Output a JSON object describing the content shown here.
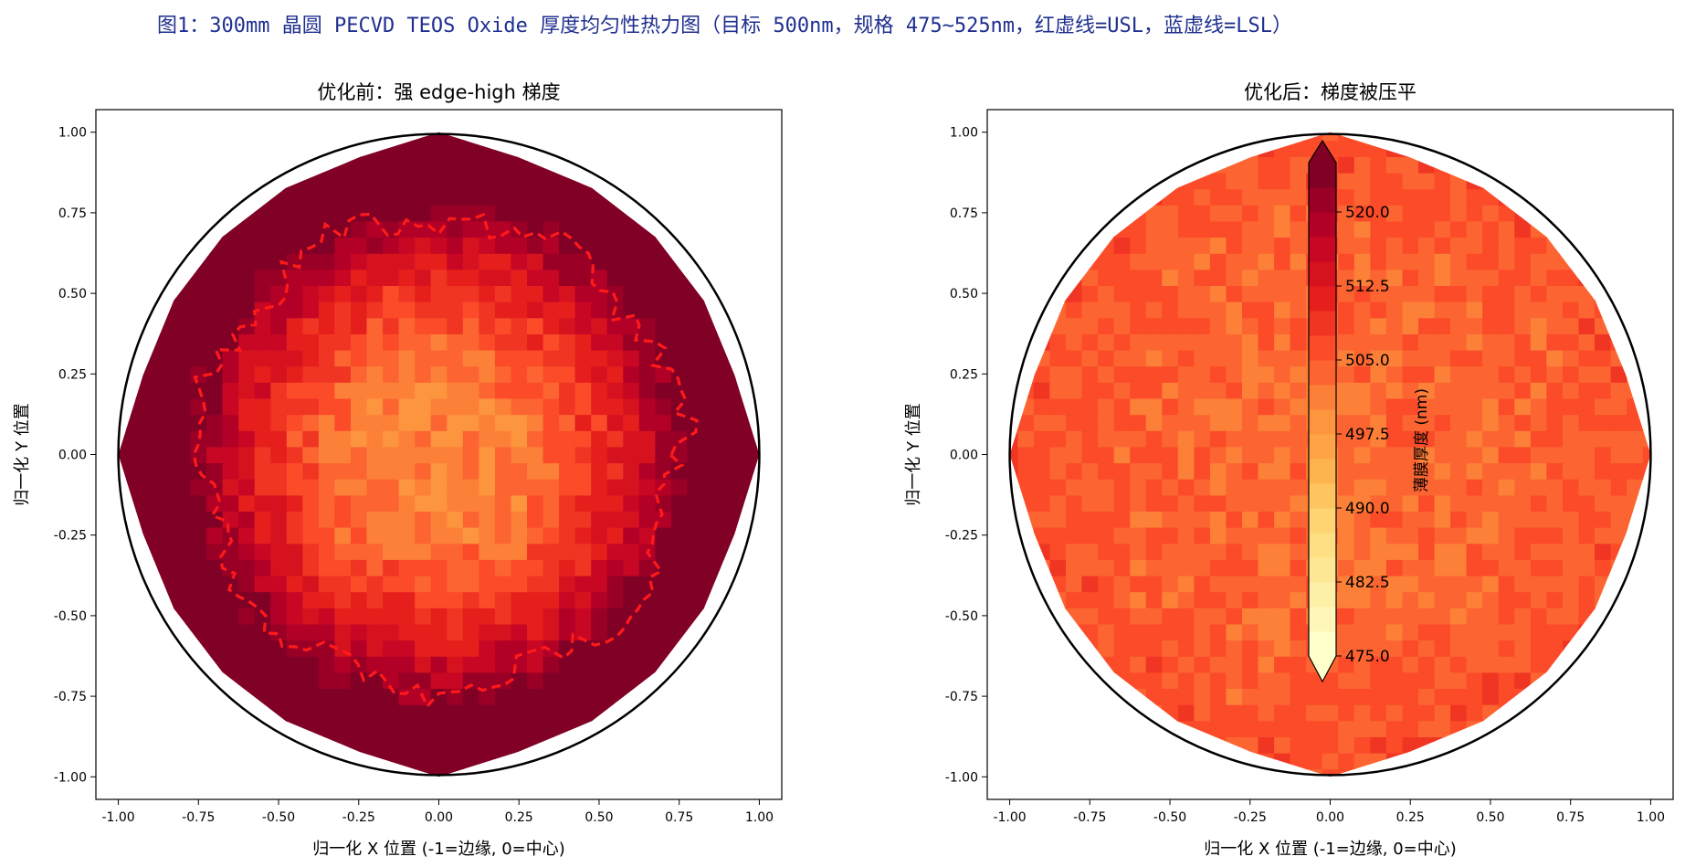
{
  "figure_title": "图1：300mm 晶圆 PECVD TEOS Oxide 厚度均匀性热力图（目标 500nm，规格 475~525nm，红虚线=USL，蓝虚线=LSL）",
  "colors": {
    "title": "#1f2f8f",
    "usl_line": "#ff1a1a",
    "lsl_line": "#1f4fff",
    "wafer_outline": "#000000",
    "colormap": [
      "#ffffcc",
      "#ffeda0",
      "#fed976",
      "#feb24c",
      "#fd8d3c",
      "#fc4e2a",
      "#e31a1c",
      "#bd0026",
      "#800026"
    ]
  },
  "chart_data": [
    {
      "type": "heatmap",
      "title": "优化前：强 edge-high 梯度",
      "xlabel": "归一化 X 位置 (-1=边缘, 0=中心)",
      "ylabel": "归一化 Y 位置",
      "xlim": [
        -1.07,
        1.07
      ],
      "ylim": [
        -1.07,
        1.07
      ],
      "xticks": [
        "-1.00",
        "-0.75",
        "-0.50",
        "-0.25",
        "0.00",
        "0.25",
        "0.50",
        "0.75",
        "1.00"
      ],
      "yticks": [
        "-1.00",
        "-0.75",
        "-0.50",
        "-0.25",
        "0.00",
        "0.25",
        "0.50",
        "0.75",
        "1.00"
      ],
      "center_thickness_nm": 500,
      "edge_thickness_nm": 535,
      "usl_contour_radius": 0.75,
      "grid": false
    },
    {
      "type": "heatmap",
      "title": "优化后：梯度被压平",
      "xlabel": "归一化 X 位置 (-1=边缘, 0=中心)",
      "ylabel": "归一化 Y 位置",
      "xlim": [
        -1.07,
        1.07
      ],
      "ylim": [
        -1.07,
        1.07
      ],
      "xticks": [
        "-1.00",
        "-0.75",
        "-0.50",
        "-0.25",
        "0.00",
        "0.25",
        "0.50",
        "0.75",
        "1.00"
      ],
      "yticks": [
        "-1.00",
        "-0.75",
        "-0.50",
        "-0.25",
        "0.00",
        "0.25",
        "0.50",
        "0.75",
        "1.00"
      ],
      "center_thickness_nm": 503,
      "edge_thickness_nm": 506,
      "grid": false,
      "colorbar": {
        "label": "薄膜厚度 (nm)",
        "range": [
          475,
          525
        ],
        "ticks": [
          "475.0",
          "482.5",
          "490.0",
          "497.5",
          "505.0",
          "512.5",
          "520.0"
        ],
        "placement": "center"
      }
    }
  ]
}
